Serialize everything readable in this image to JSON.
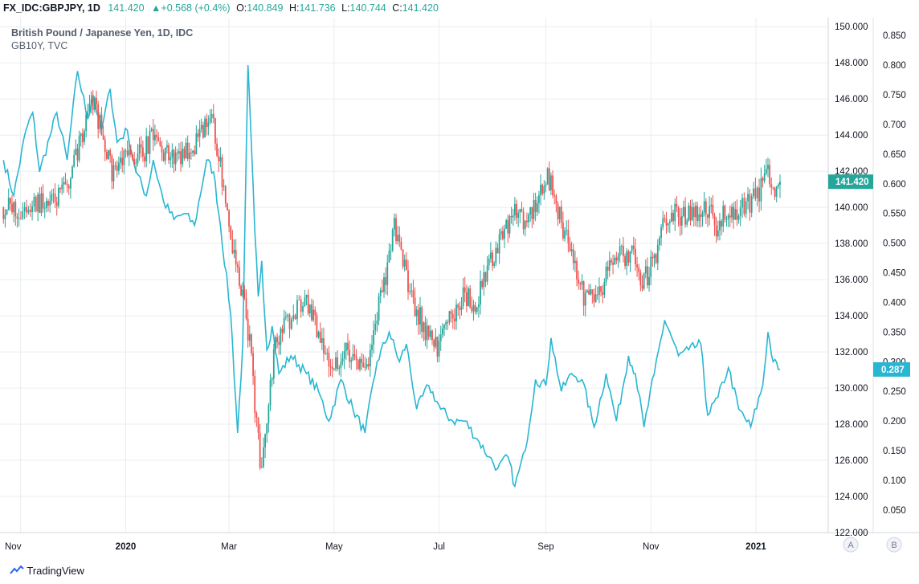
{
  "header": {
    "symbol": "FX_IDC:GBPJPY, 1D",
    "price": "141.420",
    "change": "+0.568 (+0.4%)",
    "o_label": "O:",
    "o_value": "140.849",
    "h_label": "H:",
    "h_value": "141.736",
    "l_label": "L:",
    "l_value": "140.744",
    "c_label": "C:",
    "c_value": "141.420",
    "up_arrow": "▲"
  },
  "legend": {
    "main": "British Pound / Japanese Yen, 1D, IDC",
    "compare": "GB10Y, TVC"
  },
  "axis_badges": {
    "a": "A",
    "b": "B"
  },
  "brand": "TradingView",
  "colors": {
    "up": "#26a69a",
    "down": "#ef5350",
    "line": "#29b6d2",
    "grid": "#e9edf1",
    "price_badge": "#26a69a",
    "line_badge": "#29b6d2"
  },
  "chart_data": {
    "type": "line",
    "title": "British Pound / Japanese Yen, 1D, IDC",
    "x_tick_labels": [
      "Nov",
      "2020",
      "Mar",
      "May",
      "Jul",
      "Sep",
      "Nov",
      "2021"
    ],
    "left_axis": {
      "label": "GBPJPY",
      "ylim": [
        122.0,
        150.5
      ],
      "ticks": [
        "122.000",
        "124.000",
        "126.000",
        "128.000",
        "130.000",
        "132.000",
        "134.000",
        "136.000",
        "138.000",
        "140.000",
        "142.000",
        "144.000",
        "146.000",
        "148.000",
        "150.000"
      ],
      "last_value_label": "141.420"
    },
    "right_axis": {
      "label": "GB10Y",
      "ylim": [
        0.012,
        0.88
      ],
      "ticks": [
        "0.050",
        "0.100",
        "0.150",
        "0.200",
        "0.250",
        "0.300",
        "0.350",
        "0.400",
        "0.450",
        "0.500",
        "0.550",
        "0.600",
        "0.650",
        "0.700",
        "0.750",
        "0.800",
        "0.850"
      ],
      "last_value_label": "0.287"
    },
    "grid": true,
    "series": [
      {
        "name": "British Pound / Japanese Yen, 1D, IDC",
        "kind": "candlestick-close",
        "x": [
          "2019-10-22",
          "2019-10-31",
          "2019-11-11",
          "2019-11-20",
          "2019-11-28",
          "2019-12-05",
          "2019-12-12",
          "2019-12-16",
          "2019-12-24",
          "2020-01-03",
          "2020-01-10",
          "2020-01-17",
          "2020-01-27",
          "2020-02-05",
          "2020-02-12",
          "2020-02-20",
          "2020-02-26",
          "2020-03-04",
          "2020-03-09",
          "2020-03-13",
          "2020-03-18",
          "2020-03-20",
          "2020-03-24",
          "2020-03-27",
          "2020-04-03",
          "2020-04-14",
          "2020-04-23",
          "2020-05-01",
          "2020-05-07",
          "2020-05-14",
          "2020-05-21",
          "2020-05-28",
          "2020-06-02",
          "2020-06-05",
          "2020-06-10",
          "2020-06-17",
          "2020-06-25",
          "2020-06-30",
          "2020-07-07",
          "2020-07-15",
          "2020-07-23",
          "2020-07-31",
          "2020-08-05",
          "2020-08-13",
          "2020-08-21",
          "2020-08-28",
          "2020-09-02",
          "2020-09-09",
          "2020-09-16",
          "2020-09-23",
          "2020-09-30",
          "2020-10-07",
          "2020-10-14",
          "2020-10-21",
          "2020-10-27",
          "2020-11-02",
          "2020-11-09",
          "2020-11-13",
          "2020-11-20",
          "2020-11-27",
          "2020-12-04",
          "2020-12-10",
          "2020-12-16",
          "2020-12-23",
          "2021-01-04",
          "2021-01-08",
          "2021-01-12",
          "2021-01-15"
        ],
        "values": [
          140.0,
          139.7,
          140.3,
          140.2,
          141.1,
          143.5,
          146.1,
          144.9,
          142.0,
          142.8,
          142.9,
          143.9,
          142.6,
          143.2,
          143.7,
          144.9,
          141.7,
          137.4,
          135.0,
          132.5,
          127.0,
          125.2,
          129.5,
          132.0,
          133.5,
          134.8,
          133.0,
          131.0,
          132.3,
          131.2,
          131.6,
          135.0,
          137.2,
          139.0,
          137.1,
          134.4,
          132.9,
          132.2,
          133.9,
          135.0,
          134.8,
          137.1,
          137.9,
          139.8,
          139.2,
          140.5,
          141.8,
          139.6,
          137.1,
          135.1,
          134.7,
          136.4,
          137.2,
          137.4,
          135.8,
          136.8,
          139.3,
          139.7,
          139.5,
          139.8,
          140.0,
          138.8,
          140.1,
          139.8,
          141.0,
          141.9,
          141.0,
          141.42
        ]
      },
      {
        "name": "GB10Y, TVC",
        "kind": "line",
        "x": [
          "2019-10-22",
          "2019-10-28",
          "2019-11-04",
          "2019-11-08",
          "2019-11-12",
          "2019-11-18",
          "2019-11-22",
          "2019-11-28",
          "2019-12-04",
          "2019-12-10",
          "2019-12-13",
          "2019-12-18",
          "2019-12-23",
          "2019-12-27",
          "2020-01-02",
          "2020-01-07",
          "2020-01-13",
          "2020-01-17",
          "2020-01-23",
          "2020-01-29",
          "2020-02-04",
          "2020-02-10",
          "2020-02-17",
          "2020-02-21",
          "2020-02-25",
          "2020-03-02",
          "2020-03-06",
          "2020-03-09",
          "2020-03-12",
          "2020-03-16",
          "2020-03-18",
          "2020-03-20",
          "2020-03-23",
          "2020-03-26",
          "2020-03-30",
          "2020-04-06",
          "2020-04-15",
          "2020-04-22",
          "2020-04-28",
          "2020-05-05",
          "2020-05-12",
          "2020-05-19",
          "2020-05-26",
          "2020-06-02",
          "2020-06-08",
          "2020-06-12",
          "2020-06-18",
          "2020-06-25",
          "2020-07-02",
          "2020-07-09",
          "2020-07-16",
          "2020-07-23",
          "2020-07-30",
          "2020-08-04",
          "2020-08-10",
          "2020-08-14",
          "2020-08-20",
          "2020-08-26",
          "2020-09-01",
          "2020-09-04",
          "2020-09-10",
          "2020-09-16",
          "2020-09-22",
          "2020-09-29",
          "2020-10-06",
          "2020-10-12",
          "2020-10-19",
          "2020-10-23",
          "2020-10-28",
          "2020-11-03",
          "2020-11-09",
          "2020-11-12",
          "2020-11-17",
          "2020-11-23",
          "2020-11-30",
          "2020-12-04",
          "2020-12-10",
          "2020-12-16",
          "2020-12-22",
          "2020-12-29",
          "2021-01-05",
          "2021-01-08",
          "2021-01-11",
          "2021-01-15"
        ],
        "values": [
          0.64,
          0.58,
          0.69,
          0.72,
          0.62,
          0.68,
          0.72,
          0.64,
          0.79,
          0.71,
          0.75,
          0.69,
          0.76,
          0.67,
          0.69,
          0.62,
          0.58,
          0.64,
          0.57,
          0.54,
          0.55,
          0.53,
          0.64,
          0.62,
          0.53,
          0.38,
          0.18,
          0.33,
          0.8,
          0.52,
          0.41,
          0.47,
          0.32,
          0.36,
          0.28,
          0.31,
          0.28,
          0.25,
          0.2,
          0.27,
          0.22,
          0.18,
          0.3,
          0.35,
          0.3,
          0.33,
          0.22,
          0.26,
          0.22,
          0.2,
          0.2,
          0.17,
          0.14,
          0.12,
          0.14,
          0.09,
          0.15,
          0.27,
          0.26,
          0.34,
          0.25,
          0.28,
          0.27,
          0.19,
          0.28,
          0.2,
          0.31,
          0.28,
          0.19,
          0.28,
          0.37,
          0.35,
          0.31,
          0.32,
          0.33,
          0.21,
          0.24,
          0.29,
          0.22,
          0.19,
          0.26,
          0.35,
          0.3,
          0.287
        ]
      }
    ]
  }
}
